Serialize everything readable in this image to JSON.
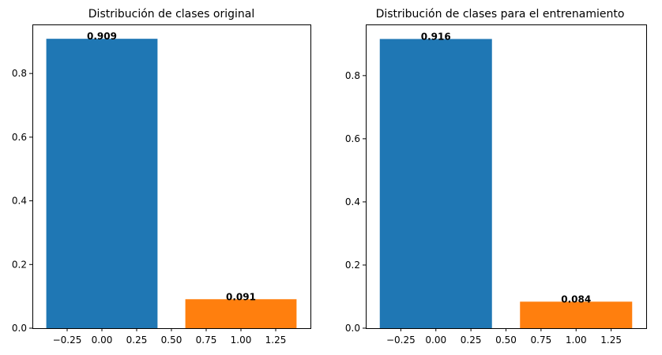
{
  "chart_data": [
    {
      "type": "bar",
      "title": "Distribución de clases original",
      "xlabel": "",
      "ylabel": "",
      "xlim": [
        -0.5,
        1.5
      ],
      "ylim": [
        0,
        0.954
      ],
      "xticks": [
        -0.25,
        0.0,
        0.25,
        0.5,
        0.75,
        1.0,
        1.25
      ],
      "xtick_labels": [
        "−0.25",
        "0.00",
        "0.25",
        "0.50",
        "0.75",
        "1.00",
        "1.25"
      ],
      "yticks": [
        0.0,
        0.2,
        0.4,
        0.6,
        0.8
      ],
      "ytick_labels": [
        "0.0",
        "0.2",
        "0.4",
        "0.6",
        "0.8"
      ],
      "grid": false,
      "bar_width": 0.8,
      "bars": [
        {
          "x": 0,
          "value": 0.909,
          "label": "0.909",
          "color": "#1f77b4"
        },
        {
          "x": 1,
          "value": 0.091,
          "label": "0.091",
          "color": "#ff7f0e"
        }
      ]
    },
    {
      "type": "bar",
      "title": "Distribución de clases para el entrenamiento",
      "xlabel": "",
      "ylabel": "",
      "xlim": [
        -0.5,
        1.5
      ],
      "ylim": [
        0,
        0.962
      ],
      "xticks": [
        -0.25,
        0.0,
        0.25,
        0.5,
        0.75,
        1.0,
        1.25
      ],
      "xtick_labels": [
        "−0.25",
        "0.00",
        "0.25",
        "0.50",
        "0.75",
        "1.00",
        "1.25"
      ],
      "yticks": [
        0.0,
        0.2,
        0.4,
        0.6,
        0.8
      ],
      "ytick_labels": [
        "0.0",
        "0.2",
        "0.4",
        "0.6",
        "0.8"
      ],
      "grid": false,
      "bar_width": 0.8,
      "bars": [
        {
          "x": 0,
          "value": 0.916,
          "label": "0.916",
          "color": "#1f77b4"
        },
        {
          "x": 1,
          "value": 0.084,
          "label": "0.084",
          "color": "#ff7f0e"
        }
      ]
    }
  ]
}
